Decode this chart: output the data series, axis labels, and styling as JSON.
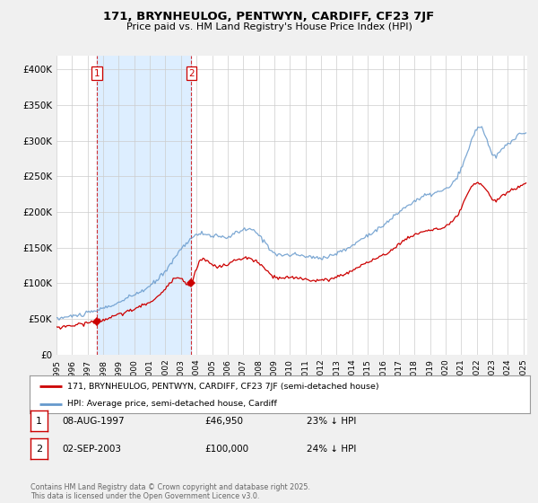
{
  "title": "171, BRYNHEULOG, PENTWYN, CARDIFF, CF23 7JF",
  "subtitle": "Price paid vs. HM Land Registry's House Price Index (HPI)",
  "property_label": "171, BRYNHEULOG, PENTWYN, CARDIFF, CF23 7JF (semi-detached house)",
  "hpi_label": "HPI: Average price, semi-detached house, Cardiff",
  "legend_entry1": "08-AUG-1997",
  "legend_price1": "£46,950",
  "legend_hpi1": "23% ↓ HPI",
  "legend_entry2": "02-SEP-2003",
  "legend_price2": "£100,000",
  "legend_hpi2": "24% ↓ HPI",
  "property_color": "#cc0000",
  "hpi_color": "#6699cc",
  "shade_color": "#ddeeff",
  "background_color": "#f0f0f0",
  "plot_bg_color": "#ffffff",
  "ylim": [
    0,
    420000
  ],
  "yticks": [
    0,
    50000,
    100000,
    150000,
    200000,
    250000,
    300000,
    350000,
    400000
  ],
  "ytick_labels": [
    "£0",
    "£50K",
    "£100K",
    "£150K",
    "£200K",
    "£250K",
    "£300K",
    "£350K",
    "£400K"
  ],
  "footer": "Contains HM Land Registry data © Crown copyright and database right 2025.\nThis data is licensed under the Open Government Licence v3.0.",
  "transaction1_x": 1997.583,
  "transaction1_y": 46950,
  "transaction2_x": 2003.667,
  "transaction2_y": 100000,
  "xlim_left": 1995.0,
  "xlim_right": 2025.25
}
